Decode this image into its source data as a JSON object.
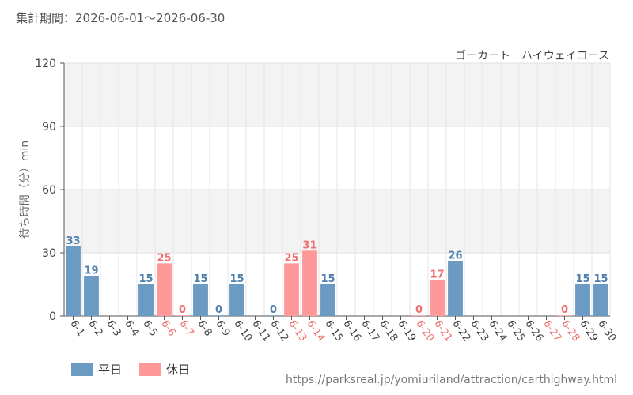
{
  "header": {
    "period_label": "集計期間：2026-06-01～2026-06-30",
    "attraction": "ゴーカート　ハイウェイコース"
  },
  "legend": {
    "weekday_label": "平日",
    "holiday_label": "休日"
  },
  "source_url": "https://parksreal.jp/yomiuriland/attraction/carthighway.html",
  "colors": {
    "weekday": "#6b9bc3",
    "holiday": "#ff9999",
    "weekday_text": "#4e7fae",
    "holiday_text": "#f07070"
  },
  "chart_data": {
    "type": "bar",
    "ylabel": "待ち時間（分）min",
    "ylim": [
      0,
      120
    ],
    "yticks": [
      0,
      30,
      60,
      90,
      120
    ],
    "grid": true,
    "legend_position": "bottom-left",
    "categories": [
      "6-1",
      "6-2",
      "6-3",
      "6-4",
      "6-5",
      "6-6",
      "6-7",
      "6-8",
      "6-9",
      "6-10",
      "6-11",
      "6-12",
      "6-13",
      "6-14",
      "6-15",
      "6-16",
      "6-17",
      "6-18",
      "6-19",
      "6-20",
      "6-21",
      "6-22",
      "6-23",
      "6-24",
      "6-25",
      "6-26",
      "6-27",
      "6-28",
      "6-29",
      "6-30"
    ],
    "values": [
      33,
      19,
      null,
      null,
      15,
      25,
      0,
      15,
      0,
      15,
      null,
      0,
      25,
      31,
      15,
      null,
      null,
      null,
      null,
      0,
      17,
      26,
      null,
      null,
      null,
      null,
      null,
      0,
      15,
      15
    ],
    "day_type": [
      "weekday",
      "weekday",
      "weekday",
      "weekday",
      "weekday",
      "holiday",
      "holiday",
      "weekday",
      "weekday",
      "weekday",
      "weekday",
      "weekday",
      "holiday",
      "holiday",
      "weekday",
      "weekday",
      "weekday",
      "weekday",
      "weekday",
      "holiday",
      "holiday",
      "weekday",
      "weekday",
      "weekday",
      "weekday",
      "weekday",
      "holiday",
      "holiday",
      "weekday",
      "weekday"
    ]
  }
}
